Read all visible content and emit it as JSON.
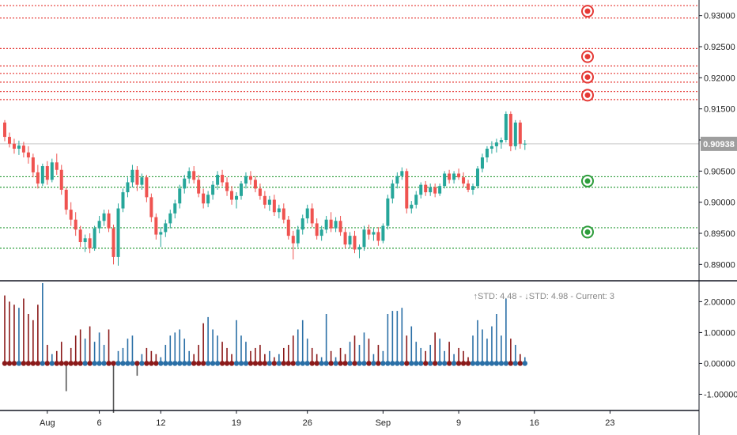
{
  "colors": {
    "bull": "#26a69a",
    "bear": "#ef5350",
    "resistance": "#e53935",
    "support": "#2e9d3c",
    "hist_up": "#2a6fa6",
    "hist_down": "#8b1a1a",
    "price_label_bg": "#9e9e9e",
    "axis_text": "#222222",
    "separator": "#131722"
  },
  "chart_data": [
    {
      "type": "candlestick",
      "ylim": [
        0.8875,
        0.9325
      ],
      "y_ticks": [
        0.89,
        0.895,
        0.9,
        0.905,
        0.91,
        0.915,
        0.92,
        0.925,
        0.93
      ],
      "y_tick_labels": [
        "0.89000",
        "0.89500",
        "0.90000",
        "0.90500",
        "0.91000",
        "0.91500",
        "0.92000",
        "0.92500",
        "0.93000"
      ],
      "x_tick_labels": [
        "Aug",
        "6",
        "12",
        "19",
        "26",
        "Sep",
        "9",
        "16",
        "23"
      ],
      "x_tick_bar_index": [
        9,
        20,
        33,
        49,
        64,
        80,
        96,
        112,
        128
      ],
      "current_price": 0.90938,
      "current_price_label": "0.90938",
      "resistance_levels": [
        0.9316,
        0.9296,
        0.9247,
        0.9219,
        0.9207,
        0.9193,
        0.9178,
        0.9165
      ],
      "support_levels": [
        0.9041,
        0.9024,
        0.8959,
        0.8926
      ],
      "resistance_markers": [
        0.9307,
        0.9234,
        0.9201,
        0.9172
      ],
      "support_markers": [
        0.9034,
        0.8952
      ],
      "bars": [
        [
          0.9128,
          0.9132,
          0.9098,
          0.9105
        ],
        [
          0.9105,
          0.9112,
          0.9088,
          0.9094
        ],
        [
          0.9094,
          0.9102,
          0.9078,
          0.9086
        ],
        [
          0.9086,
          0.9099,
          0.9076,
          0.9091
        ],
        [
          0.9091,
          0.9097,
          0.9072,
          0.908
        ],
        [
          0.908,
          0.909,
          0.9062,
          0.9072
        ],
        [
          0.9072,
          0.9078,
          0.904,
          0.9048
        ],
        [
          0.9048,
          0.906,
          0.9022,
          0.903
        ],
        [
          0.903,
          0.9062,
          0.9026,
          0.9058
        ],
        [
          0.9058,
          0.9066,
          0.9028,
          0.9036
        ],
        [
          0.9036,
          0.907,
          0.9032,
          0.9064
        ],
        [
          0.9064,
          0.9078,
          0.9044,
          0.9052
        ],
        [
          0.9052,
          0.906,
          0.9012,
          0.902
        ],
        [
          0.902,
          0.9024,
          0.898,
          0.8988
        ],
        [
          0.8988,
          0.9,
          0.8962,
          0.8972
        ],
        [
          0.8972,
          0.8984,
          0.8946,
          0.8956
        ],
        [
          0.8956,
          0.8962,
          0.8928,
          0.8936
        ],
        [
          0.8936,
          0.8948,
          0.892,
          0.8942
        ],
        [
          0.8942,
          0.895,
          0.8918,
          0.8926
        ],
        [
          0.8926,
          0.8962,
          0.8922,
          0.8958
        ],
        [
          0.8958,
          0.8978,
          0.895,
          0.897
        ],
        [
          0.897,
          0.8988,
          0.8962,
          0.8982
        ],
        [
          0.8982,
          0.8988,
          0.8952,
          0.8958
        ],
        [
          0.8958,
          0.8964,
          0.89,
          0.8912
        ],
        [
          0.8912,
          0.8998,
          0.8898,
          0.899
        ],
        [
          0.899,
          0.9022,
          0.8984,
          0.9016
        ],
        [
          0.9016,
          0.904,
          0.9008,
          0.9032
        ],
        [
          0.9032,
          0.906,
          0.9024,
          0.9052
        ],
        [
          0.9052,
          0.9058,
          0.9018,
          0.9028
        ],
        [
          0.9028,
          0.9046,
          0.902,
          0.904
        ],
        [
          0.904,
          0.9044,
          0.9,
          0.9008
        ],
        [
          0.9008,
          0.9014,
          0.8968,
          0.8976
        ],
        [
          0.8976,
          0.8982,
          0.894,
          0.8948
        ],
        [
          0.8948,
          0.896,
          0.8928,
          0.8952
        ],
        [
          0.8952,
          0.8972,
          0.8944,
          0.8966
        ],
        [
          0.8966,
          0.8988,
          0.8958,
          0.8982
        ],
        [
          0.8982,
          0.9004,
          0.8974,
          0.8998
        ],
        [
          0.8998,
          0.9028,
          0.899,
          0.9022
        ],
        [
          0.9022,
          0.9044,
          0.9014,
          0.9038
        ],
        [
          0.9038,
          0.9056,
          0.903,
          0.905
        ],
        [
          0.905,
          0.9058,
          0.903,
          0.9036
        ],
        [
          0.9036,
          0.9044,
          0.9008,
          0.9014
        ],
        [
          0.9014,
          0.9022,
          0.899,
          0.8998
        ],
        [
          0.8998,
          0.9018,
          0.8992,
          0.9012
        ],
        [
          0.9012,
          0.9034,
          0.9004,
          0.9028
        ],
        [
          0.9028,
          0.905,
          0.902,
          0.9044
        ],
        [
          0.9044,
          0.9052,
          0.9026,
          0.9032
        ],
        [
          0.9032,
          0.904,
          0.901,
          0.9018
        ],
        [
          0.9018,
          0.9026,
          0.8996,
          0.9004
        ],
        [
          0.9004,
          0.9016,
          0.899,
          0.901
        ],
        [
          0.901,
          0.9034,
          0.9004,
          0.903
        ],
        [
          0.903,
          0.9048,
          0.9022,
          0.9042
        ],
        [
          0.9042,
          0.905,
          0.9028,
          0.9036
        ],
        [
          0.9036,
          0.9042,
          0.9016,
          0.9022
        ],
        [
          0.9022,
          0.903,
          0.9004,
          0.901
        ],
        [
          0.901,
          0.9018,
          0.899,
          0.8996
        ],
        [
          0.8996,
          0.901,
          0.8986,
          0.9004
        ],
        [
          0.9004,
          0.9012,
          0.8978,
          0.8984
        ],
        [
          0.8984,
          0.8996,
          0.8974,
          0.899
        ],
        [
          0.899,
          0.8998,
          0.8966,
          0.8972
        ],
        [
          0.8972,
          0.8978,
          0.894,
          0.8946
        ],
        [
          0.8946,
          0.8954,
          0.8908,
          0.8934
        ],
        [
          0.8934,
          0.8962,
          0.8928,
          0.8956
        ],
        [
          0.8956,
          0.898,
          0.8948,
          0.8974
        ],
        [
          0.8974,
          0.8996,
          0.8966,
          0.899
        ],
        [
          0.899,
          0.8998,
          0.896,
          0.8966
        ],
        [
          0.8966,
          0.8974,
          0.894,
          0.8946
        ],
        [
          0.8946,
          0.8962,
          0.8938,
          0.8956
        ],
        [
          0.8956,
          0.8978,
          0.895,
          0.8972
        ],
        [
          0.8972,
          0.8984,
          0.8952,
          0.8958
        ],
        [
          0.8958,
          0.8976,
          0.8952,
          0.897
        ],
        [
          0.897,
          0.8978,
          0.8946,
          0.8952
        ],
        [
          0.8952,
          0.8958,
          0.8926,
          0.8932
        ],
        [
          0.8932,
          0.8952,
          0.8926,
          0.8946
        ],
        [
          0.8946,
          0.8954,
          0.8918,
          0.8924
        ],
        [
          0.8924,
          0.8932,
          0.891,
          0.8928
        ],
        [
          0.8928,
          0.8962,
          0.8922,
          0.8956
        ],
        [
          0.8956,
          0.8964,
          0.894,
          0.8948
        ],
        [
          0.8948,
          0.8958,
          0.8938,
          0.8952
        ],
        [
          0.8952,
          0.896,
          0.893,
          0.8938
        ],
        [
          0.8938,
          0.8966,
          0.8934,
          0.8962
        ],
        [
          0.8962,
          0.9012,
          0.8956,
          0.9006
        ],
        [
          0.9006,
          0.9036,
          0.8998,
          0.903
        ],
        [
          0.903,
          0.9048,
          0.9022,
          0.9042
        ],
        [
          0.9042,
          0.9056,
          0.9036,
          0.905
        ],
        [
          0.905,
          0.9054,
          0.8982,
          0.899
        ],
        [
          0.899,
          0.9002,
          0.8982,
          0.8996
        ],
        [
          0.8996,
          0.9018,
          0.899,
          0.9012
        ],
        [
          0.9012,
          0.9032,
          0.9006,
          0.9028
        ],
        [
          0.9028,
          0.9034,
          0.901,
          0.9016
        ],
        [
          0.9016,
          0.903,
          0.901,
          0.9024
        ],
        [
          0.9024,
          0.903,
          0.9008,
          0.9014
        ],
        [
          0.9014,
          0.903,
          0.901,
          0.9026
        ],
        [
          0.9026,
          0.905,
          0.9022,
          0.9046
        ],
        [
          0.9046,
          0.9052,
          0.903,
          0.9036
        ],
        [
          0.9036,
          0.905,
          0.903,
          0.9046
        ],
        [
          0.9046,
          0.9054,
          0.9036,
          0.904
        ],
        [
          0.904,
          0.9048,
          0.9024,
          0.903
        ],
        [
          0.903,
          0.9036,
          0.9016,
          0.902
        ],
        [
          0.902,
          0.903,
          0.9012,
          0.9026
        ],
        [
          0.9026,
          0.9058,
          0.9022,
          0.9054
        ],
        [
          0.9054,
          0.9078,
          0.9048,
          0.9072
        ],
        [
          0.9072,
          0.909,
          0.9064,
          0.9086
        ],
        [
          0.9086,
          0.9098,
          0.9078,
          0.909
        ],
        [
          0.909,
          0.9102,
          0.908,
          0.9096
        ],
        [
          0.9096,
          0.9104,
          0.9086,
          0.91
        ],
        [
          0.91,
          0.9146,
          0.9096,
          0.9142
        ],
        [
          0.9142,
          0.9146,
          0.9082,
          0.909
        ],
        [
          0.909,
          0.9132,
          0.9084,
          0.9128
        ],
        [
          0.9128,
          0.9132,
          0.9086,
          0.9094
        ],
        [
          0.9094,
          0.91,
          0.9084,
          0.9094
        ]
      ],
      "indicator": {
        "label": "↑STD: 4.48 - ↓STD: 4.98 - Current: 3",
        "ylim": [
          -1.5,
          2.65
        ],
        "y_ticks": [
          2.0,
          1.0,
          0.0,
          -1.0
        ],
        "y_tick_labels": [
          "2.00000",
          "1.00000",
          "0.00000",
          "-1.00000"
        ],
        "values": [
          2.2,
          2.0,
          1.9,
          1.8,
          2.1,
          1.6,
          1.4,
          1.9,
          2.6,
          0.6,
          0.3,
          0.4,
          0.7,
          -0.9,
          0.5,
          0.9,
          1.1,
          0.8,
          1.2,
          0.7,
          1.0,
          0.6,
          1.1,
          -1.6,
          0.4,
          0.5,
          0.8,
          0.9,
          -0.4,
          0.3,
          0.5,
          0.4,
          0.3,
          0.2,
          0.6,
          0.9,
          1.0,
          1.1,
          0.8,
          0.4,
          0.3,
          0.6,
          1.3,
          1.5,
          1.1,
          0.9,
          0.7,
          0.5,
          0.3,
          1.4,
          0.9,
          0.7,
          0.4,
          0.5,
          0.6,
          0.3,
          0.4,
          0.2,
          0.3,
          0.5,
          0.6,
          0.9,
          1.1,
          1.4,
          0.8,
          0.5,
          0.3,
          0.2,
          1.6,
          0.4,
          0.2,
          0.5,
          0.3,
          0.7,
          0.9,
          0.6,
          1.0,
          0.8,
          0.3,
          0.6,
          0.4,
          1.6,
          1.7,
          1.7,
          1.8,
          0.9,
          1.2,
          0.7,
          0.5,
          0.4,
          0.6,
          1.0,
          0.8,
          0.4,
          0.7,
          0.3,
          0.5,
          0.4,
          0.2,
          0.9,
          1.4,
          1.1,
          0.8,
          1.2,
          1.6,
          0.9,
          2.1,
          0.8,
          0.6,
          0.3,
          0.2
        ]
      }
    }
  ]
}
